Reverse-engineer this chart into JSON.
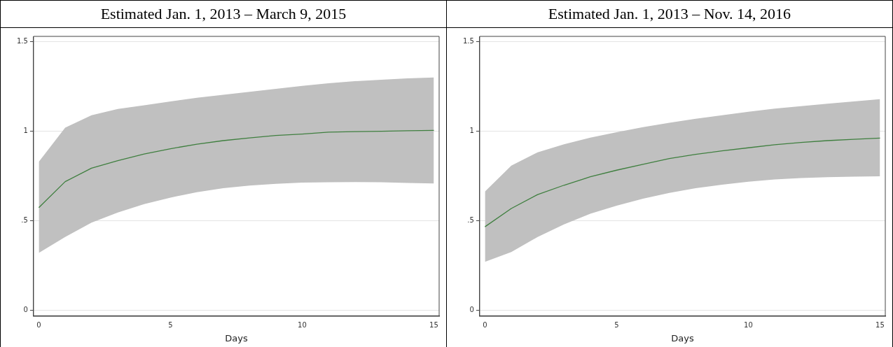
{
  "chart_data": [
    {
      "type": "line",
      "title": "Estimated Jan. 1, 2013 – March 9, 2015",
      "xlabel": "Days",
      "x": [
        0,
        1,
        2,
        3,
        4,
        5,
        6,
        7,
        8,
        9,
        10,
        11,
        12,
        13,
        14,
        15
      ],
      "series": [
        {
          "color": "#3f7f3f",
          "values": [
            0.574,
            0.719,
            0.794,
            0.836,
            0.873,
            0.903,
            0.928,
            0.948,
            0.963,
            0.977,
            0.985,
            0.995,
            0.998,
            1.0,
            1.003,
            1.005
          ],
          "lower": [
            0.321,
            0.41,
            0.49,
            0.547,
            0.594,
            0.63,
            0.66,
            0.682,
            0.697,
            0.707,
            0.714,
            0.716,
            0.717,
            0.716,
            0.712,
            0.709
          ],
          "upper": [
            0.83,
            1.02,
            1.09,
            1.125,
            1.145,
            1.167,
            1.187,
            1.204,
            1.22,
            1.237,
            1.254,
            1.268,
            1.28,
            1.288,
            1.296,
            1.301
          ]
        }
      ],
      "xlim": [
        -0.2,
        15.2
      ],
      "xticks": [
        0,
        5,
        10,
        15
      ],
      "ylim": [
        -0.03,
        1.53
      ],
      "yticks": [
        0,
        {
          "value": 0.5,
          "label": ".5"
        },
        1,
        1.5
      ],
      "grid": "y",
      "legend": false,
      "marker": "none",
      "line_style": "solid"
    },
    {
      "type": "line",
      "title": "Estimated Jan. 1, 2013 – Nov. 14, 2016",
      "xlabel": "Days",
      "x": [
        0,
        1,
        2,
        3,
        4,
        5,
        6,
        7,
        8,
        9,
        10,
        11,
        12,
        13,
        14,
        15
      ],
      "series": [
        {
          "color": "#3f7f3f",
          "values": [
            0.467,
            0.569,
            0.647,
            0.699,
            0.746,
            0.783,
            0.816,
            0.848,
            0.871,
            0.891,
            0.908,
            0.925,
            0.938,
            0.948,
            0.955,
            0.962
          ],
          "lower": [
            0.271,
            0.326,
            0.41,
            0.48,
            0.54,
            0.585,
            0.624,
            0.656,
            0.682,
            0.702,
            0.719,
            0.731,
            0.739,
            0.744,
            0.747,
            0.749
          ],
          "upper": [
            0.664,
            0.808,
            0.883,
            0.928,
            0.965,
            0.995,
            1.023,
            1.048,
            1.07,
            1.09,
            1.109,
            1.127,
            1.14,
            1.154,
            1.167,
            1.179
          ]
        }
      ],
      "xlim": [
        -0.2,
        15.2
      ],
      "xticks": [
        0,
        5,
        10,
        15
      ],
      "ylim": [
        -0.03,
        1.53
      ],
      "yticks": [
        0,
        {
          "value": 0.5,
          "label": ".5"
        },
        1,
        1.5
      ],
      "grid": "y",
      "legend": false,
      "marker": "none",
      "line_style": "solid"
    }
  ]
}
